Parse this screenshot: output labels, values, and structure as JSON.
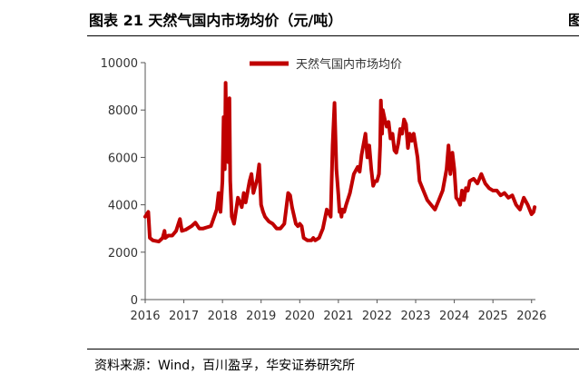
{
  "header": {
    "figure_title": "图表 21 天然气国内市场均价（元/吨）"
  },
  "footer": {
    "source": "资料来源：Wind，百川盈孚，华安证券研究所"
  },
  "chart_data": {
    "type": "line",
    "title": "",
    "xlabel": "",
    "ylabel": "",
    "x_tick_labels": [
      "2016",
      "2017",
      "2018",
      "2019",
      "2020",
      "2021",
      "2022",
      "2023",
      "2024",
      "2025",
      "2026"
    ],
    "y_tick_labels": [
      "0",
      "2000",
      "4000",
      "6000",
      "8000",
      "10000"
    ],
    "ylim": [
      0,
      10000
    ],
    "xlim": [
      2016.0,
      2026.1
    ],
    "grid": false,
    "legend_position": "top-center",
    "series": [
      {
        "name": "天然气国内市场均价",
        "color": "#c00000",
        "x": [
          2016.0,
          2016.08,
          2016.12,
          2016.2,
          2016.35,
          2016.45,
          2016.5,
          2016.52,
          2016.6,
          2016.7,
          2016.8,
          2016.9,
          2016.95,
          2017.05,
          2017.2,
          2017.3,
          2017.4,
          2017.5,
          2017.6,
          2017.7,
          2017.85,
          2017.9,
          2017.95,
          2018.0,
          2018.03,
          2018.06,
          2018.08,
          2018.1,
          2018.12,
          2018.15,
          2018.18,
          2018.2,
          2018.24,
          2018.3,
          2018.4,
          2018.5,
          2018.55,
          2018.6,
          2018.7,
          2018.75,
          2018.8,
          2018.9,
          2018.95,
          2019.0,
          2019.05,
          2019.1,
          2019.2,
          2019.3,
          2019.4,
          2019.5,
          2019.6,
          2019.7,
          2019.75,
          2019.8,
          2019.9,
          2019.95,
          2020.0,
          2020.05,
          2020.1,
          2020.2,
          2020.3,
          2020.35,
          2020.4,
          2020.5,
          2020.6,
          2020.7,
          2020.8,
          2020.85,
          2020.9,
          2020.95,
          2021.0,
          2021.03,
          2021.05,
          2021.08,
          2021.1,
          2021.15,
          2021.2,
          2021.3,
          2021.4,
          2021.5,
          2021.55,
          2021.6,
          2021.7,
          2021.75,
          2021.8,
          2021.85,
          2021.9,
          2021.95,
          2022.0,
          2022.05,
          2022.08,
          2022.1,
          2022.13,
          2022.15,
          2022.2,
          2022.25,
          2022.3,
          2022.35,
          2022.4,
          2022.45,
          2022.5,
          2022.55,
          2022.6,
          2022.65,
          2022.7,
          2022.75,
          2022.8,
          2022.85,
          2022.9,
          2022.95,
          2023.0,
          2023.05,
          2023.1,
          2023.2,
          2023.3,
          2023.4,
          2023.5,
          2023.6,
          2023.7,
          2023.8,
          2023.85,
          2023.9,
          2023.95,
          2024.0,
          2024.05,
          2024.1,
          2024.15,
          2024.2,
          2024.25,
          2024.3,
          2024.35,
          2024.4,
          2024.5,
          2024.6,
          2024.7,
          2024.75,
          2024.8,
          2024.9,
          2025.0,
          2025.1,
          2025.2,
          2025.3,
          2025.4,
          2025.5,
          2025.6,
          2025.7,
          2025.8,
          2025.9,
          2026.0,
          2026.05,
          2026.08
        ],
        "values": [
          3500,
          3700,
          2600,
          2500,
          2450,
          2600,
          2900,
          2600,
          2700,
          2700,
          2900,
          3400,
          2900,
          2950,
          3100,
          3250,
          3000,
          3000,
          3050,
          3100,
          3800,
          4500,
          3700,
          5000,
          7700,
          5500,
          9150,
          7000,
          8000,
          5800,
          8500,
          5000,
          3500,
          3200,
          4300,
          3900,
          4500,
          4100,
          5000,
          5300,
          4500,
          5100,
          5700,
          4000,
          3700,
          3500,
          3300,
          3200,
          3000,
          3000,
          3200,
          4500,
          4400,
          3900,
          3200,
          3100,
          3200,
          3100,
          2600,
          2500,
          2500,
          2600,
          2500,
          2600,
          3000,
          3800,
          3500,
          6500,
          8300,
          5500,
          4400,
          3700,
          3800,
          3500,
          3800,
          3700,
          4000,
          4500,
          5300,
          5600,
          5400,
          6100,
          7000,
          6000,
          6500,
          5500,
          4800,
          5000,
          5000,
          5300,
          6500,
          8400,
          7000,
          8000,
          7600,
          7300,
          7500,
          6800,
          7000,
          6300,
          6200,
          6600,
          7200,
          7000,
          7600,
          7400,
          6400,
          7000,
          6700,
          7000,
          6500,
          6000,
          5000,
          4600,
          4200,
          4000,
          3800,
          4200,
          4600,
          5500,
          6500,
          5300,
          6200,
          5500,
          4300,
          4200,
          4000,
          4600,
          4200,
          4700,
          4600,
          5000,
          5100,
          4900,
          5300,
          5100,
          4900,
          4700,
          4600,
          4600,
          4400,
          4500,
          4300,
          4400,
          4000,
          3800,
          4300,
          4000,
          3600,
          3700,
          3900
        ]
      }
    ]
  }
}
